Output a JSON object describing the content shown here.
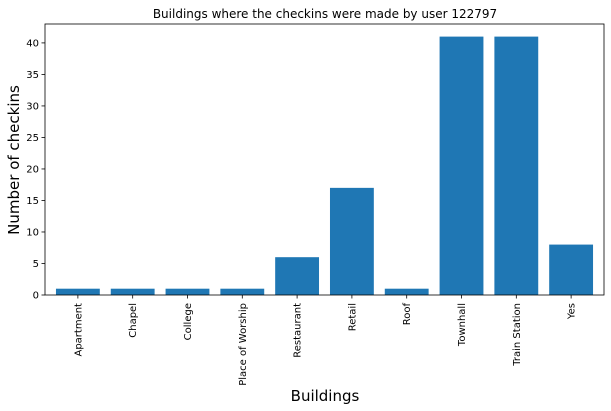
{
  "chart_data": {
    "type": "bar",
    "title": "Buildings where the checkins were made by user 122797",
    "xlabel": "Buildings",
    "ylabel": "Number of checkins",
    "categories": [
      "Apartment",
      "Chapel",
      "College",
      "Place of Worship",
      "Restaurant",
      "Retail",
      "Roof",
      "Townhall",
      "Train Station",
      "Yes"
    ],
    "values": [
      1,
      1,
      1,
      1,
      6,
      17,
      1,
      41,
      41,
      8
    ],
    "ylim": [
      0,
      43
    ],
    "yticks": [
      0,
      5,
      10,
      15,
      20,
      25,
      30,
      35,
      40
    ],
    "grid": false,
    "bar_color": "#1f77b4"
  }
}
